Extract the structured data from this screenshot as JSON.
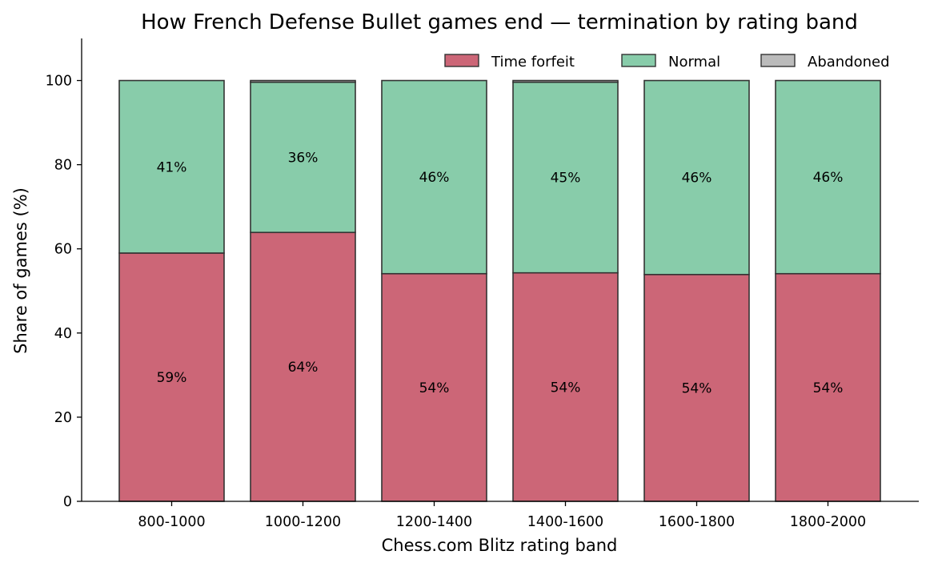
{
  "chart_data": {
    "type": "bar",
    "stacked": true,
    "title": "How French Defense Bullet games end — termination by rating band",
    "xlabel": "Chess.com Blitz rating band",
    "ylabel": "Share of games (%)",
    "ylim": [
      0,
      110
    ],
    "yticks": [
      "0",
      "20",
      "40",
      "60",
      "80",
      "100"
    ],
    "grid": false,
    "legend_position": "top-right",
    "categories": [
      "800-1000",
      "1000-1200",
      "1200-1400",
      "1400-1600",
      "1600-1800",
      "1800-2000"
    ],
    "series": [
      {
        "name": "Time forfeit",
        "color": "#cc6677",
        "values": [
          59.0,
          63.9,
          54.1,
          54.3,
          53.9,
          54.1
        ],
        "labels": [
          "59%",
          "64%",
          "54%",
          "54%",
          "54%",
          "54%"
        ]
      },
      {
        "name": "Normal",
        "color": "#88ccaa",
        "values": [
          41.0,
          35.7,
          45.9,
          45.3,
          46.1,
          45.9
        ],
        "labels": [
          "41%",
          "36%",
          "46%",
          "45%",
          "46%",
          "46%"
        ]
      },
      {
        "name": "Abandoned",
        "color": "#bbbbbb",
        "values": [
          0.0,
          0.4,
          0.0,
          0.4,
          0.0,
          0.0
        ],
        "labels": [
          "",
          "",
          "",
          "",
          "",
          ""
        ]
      }
    ]
  }
}
